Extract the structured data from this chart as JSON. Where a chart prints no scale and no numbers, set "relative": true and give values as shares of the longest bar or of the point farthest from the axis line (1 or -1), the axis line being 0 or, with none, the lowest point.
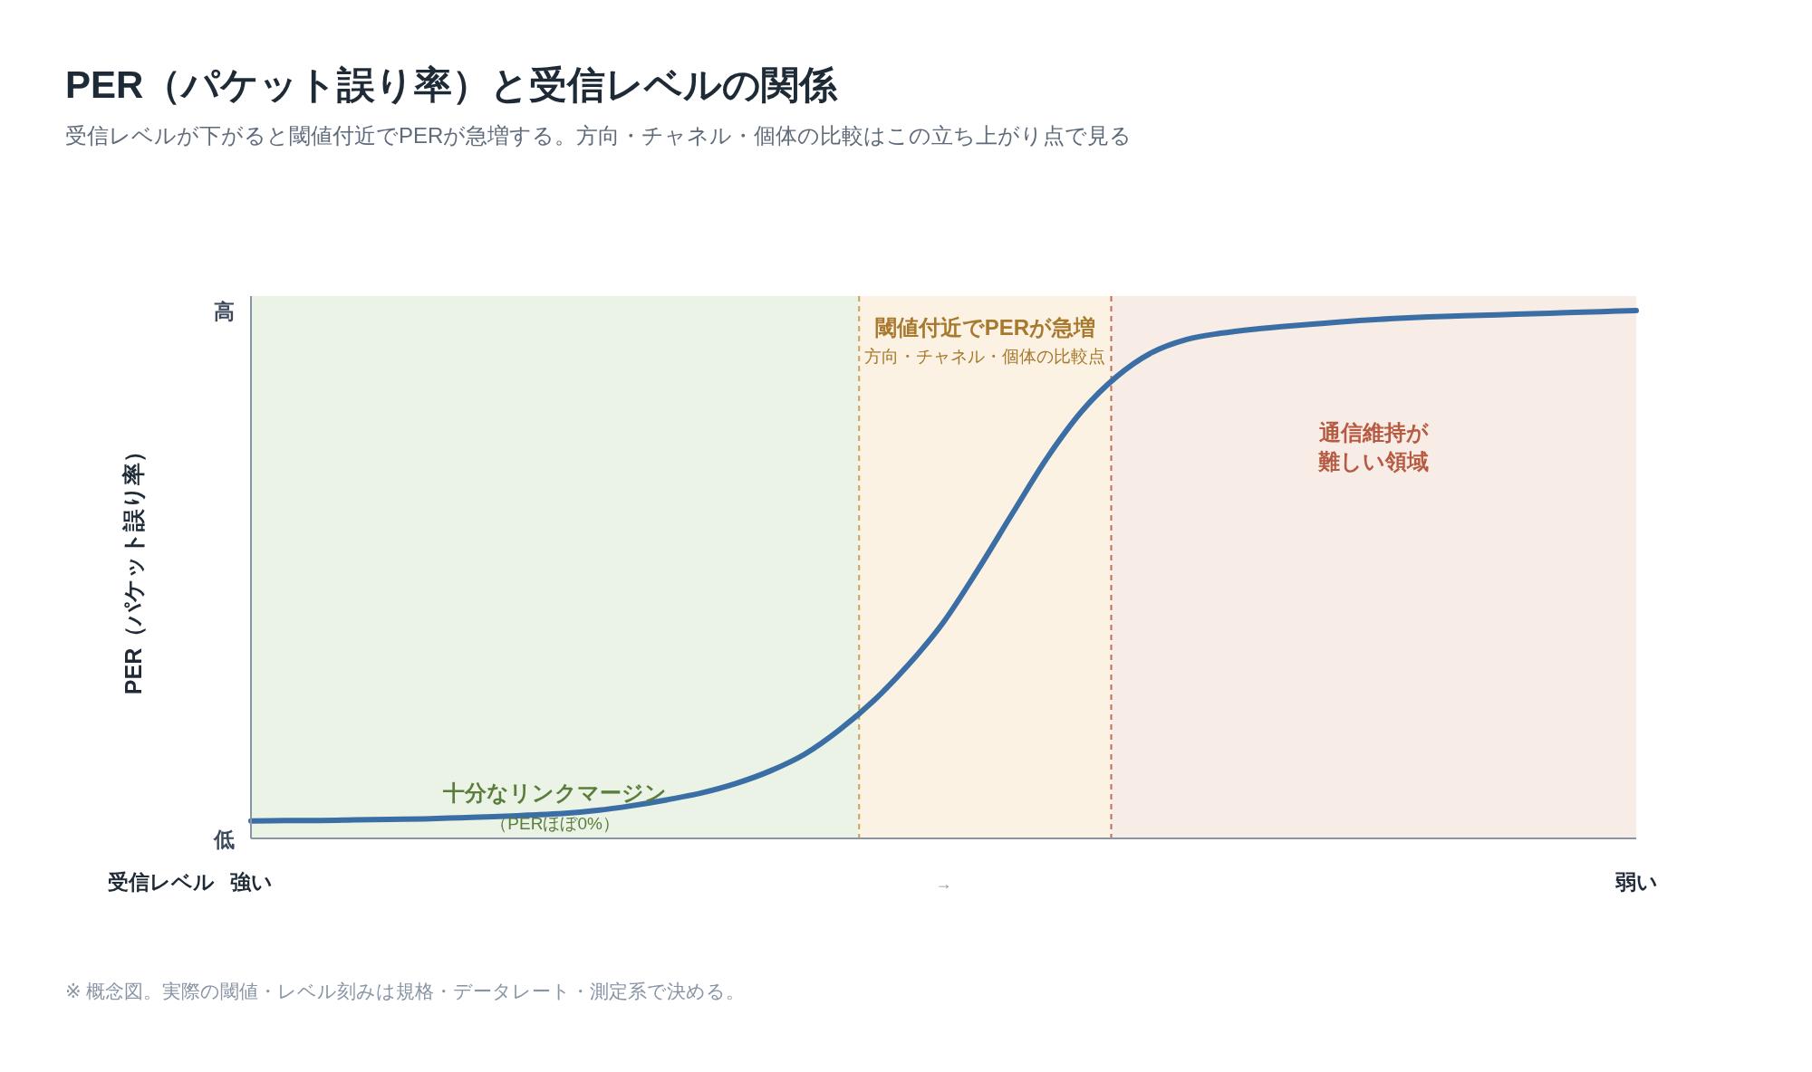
{
  "chart_data": {
    "type": "line",
    "title": "PER（パケット誤り率）と受信レベルの関係",
    "subtitle": "受信レベルが下がると閾値付近でPERが急増する。方向・チャネル・個体の比較はこの立ち上がり点で見る",
    "xlabel": "受信レベル",
    "ylabel": "PER（パケット誤り率）",
    "relative": true,
    "categories": [
      "強い",
      null,
      null,
      null,
      null,
      null,
      null,
      null,
      null,
      null,
      null,
      null,
      null,
      null,
      null,
      null,
      null,
      null,
      null,
      null,
      "→",
      null,
      null,
      null,
      null,
      null,
      null,
      null,
      null,
      null,
      null,
      null,
      null,
      null,
      null,
      null,
      null,
      null,
      null,
      null,
      "弱い"
    ],
    "series": [
      {
        "color": "#3a6ea5",
        "values": [
          0.033,
          0.034,
          0.034,
          0.035,
          0.036,
          0.037,
          0.039,
          0.041,
          0.044,
          0.047,
          0.053,
          0.062,
          0.073,
          0.086,
          0.104,
          0.128,
          0.16,
          0.206,
          0.262,
          0.33,
          0.41,
          0.51,
          0.617,
          0.722,
          0.81,
          0.875,
          0.92,
          0.945,
          0.957,
          0.965,
          0.971,
          0.976,
          0.981,
          0.985,
          0.988,
          0.99,
          0.992,
          0.994,
          0.996,
          0.998,
          1
        ]
      }
    ],
    "annotations": [
      "高",
      "低",
      "※ 概念図。実際の閾値・レベル刻みは規格・データレート・測定系で決める。",
      "十分なリンクマージン",
      "（PERほぼ0%）",
      "閾値付近でPERが急増",
      "方向・チャネル・個体の比較点",
      "通信維持が",
      "難しい領域"
    ],
    "grid": false,
    "marker": "none",
    "line_style": "solid"
  }
}
